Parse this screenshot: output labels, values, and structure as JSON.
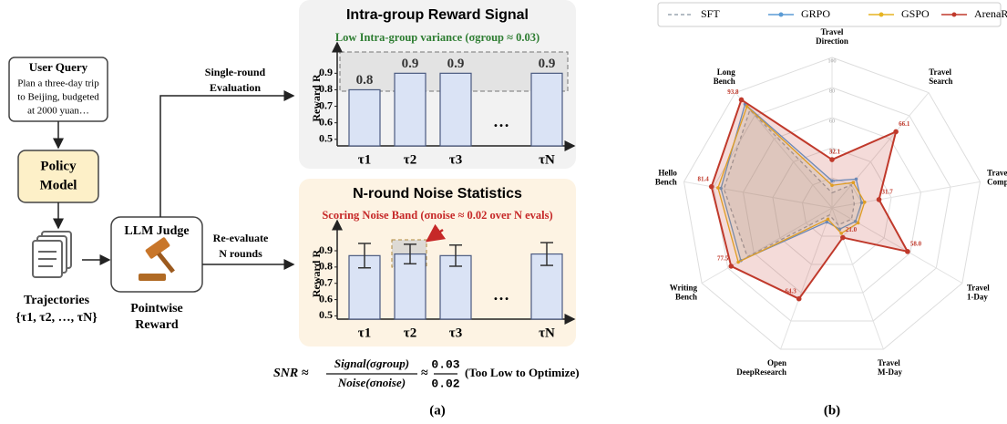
{
  "diagram": {
    "user_query": {
      "title": "User Query",
      "text": [
        "Plan a three-day trip",
        "to Beijing, budgeted",
        "at 2000 yuan…"
      ]
    },
    "policy_model": [
      "Policy",
      "Model"
    ],
    "trajectories": {
      "label": "Trajectories",
      "set": "{τ1, τ2, …, τN}"
    },
    "judge": {
      "title": "LLM Judge",
      "caption": [
        "Pointwise",
        "Reward"
      ]
    },
    "edges": {
      "single": [
        "Single-round",
        "Evaluation"
      ],
      "multi": [
        "Re-evaluate",
        "N rounds"
      ]
    },
    "formula": {
      "lhs": "SNR ≈",
      "numerator": "Signal(σgroup)",
      "denominator": "Noise(σnoise)",
      "approx": "≈",
      "ratio_top": "0.03",
      "ratio_bottom": "0.02",
      "note": "(Too Low to Optimize)"
    },
    "panel_labels": [
      "(a)",
      "(b)"
    ]
  },
  "chart_data": [
    {
      "type": "bar",
      "title": "Intra-group Reward Signal",
      "subtitle": "Low Intra-group variance (σgroup ≈ 0.03)",
      "y_label": "Reward R",
      "categories": [
        "τ1",
        "τ2",
        "τ3",
        null,
        "τN"
      ],
      "values": [
        0.8,
        0.9,
        0.9,
        null,
        0.9
      ],
      "annotation": "…",
      "color": "#dae3f5",
      "ylim": [
        0.46,
        1.04
      ],
      "yticks": [
        0.5,
        0.6,
        0.7,
        0.8,
        0.9
      ]
    },
    {
      "type": "bar_error",
      "title": "N-round Noise Statistics",
      "subtitle": "Scoring Noise Band (σnoise ≈ 0.02 over N evals)",
      "y_label": "Reward R",
      "categories": [
        "τ1",
        "τ2",
        "τ3",
        null,
        "τN"
      ],
      "values": [
        0.87,
        0.88,
        0.87,
        null,
        0.88
      ],
      "errors": [
        0.075,
        0.06,
        0.065,
        null,
        0.07
      ],
      "annotation": "…",
      "color": "#dae3f5",
      "ylim": [
        0.48,
        1.04
      ],
      "yticks": [
        0.5,
        0.6,
        0.7,
        0.8,
        0.9
      ]
    },
    {
      "type": "radar",
      "categories": [
        [
          "Travel",
          "Direction"
        ],
        [
          "Travel",
          "Search"
        ],
        [
          "Travel",
          "Compare"
        ],
        [
          "Travel",
          "1-Day"
        ],
        [
          "Travel",
          "M-Day"
        ],
        [
          "Open",
          "DeepResearch"
        ],
        [
          "Writing",
          "Bench"
        ],
        [
          "Hello",
          "Bench"
        ],
        [
          "Long",
          "Bench"
        ]
      ],
      "rlim": [
        0,
        100
      ],
      "rticks": [
        20,
        40,
        60,
        80,
        100
      ],
      "legend": "top",
      "series": [
        {
          "name": "SFT",
          "color": "#9aa5b1",
          "line_style": "dashed",
          "values": [
            10,
            20,
            15,
            15,
            12,
            5,
            65,
            73,
            85
          ]
        },
        {
          "name": "GRPO",
          "color": "#5b9bd5",
          "values": [
            18,
            25,
            20,
            18,
            15,
            10,
            70,
            75,
            90
          ]
        },
        {
          "name": "GSPO",
          "color": "#e6b422",
          "values": [
            15,
            22,
            22,
            20,
            18,
            8,
            72,
            77,
            88
          ]
        },
        {
          "name": "ArenaRL",
          "color": "#c0392b",
          "values": [
            32.1,
            66.1,
            31.7,
            58.0,
            21.0,
            64.3,
            77.5,
            81.4,
            93.8
          ],
          "value_labels": [
            "32.1",
            "66.1",
            "31.7",
            "58.0",
            "21.0",
            "64.3",
            "77.5",
            "81.4",
            "93.8"
          ]
        }
      ]
    }
  ]
}
